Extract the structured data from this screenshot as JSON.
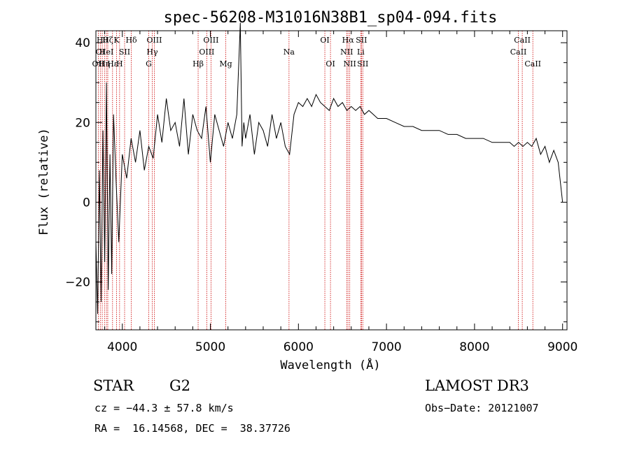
{
  "chart_data": {
    "type": "line",
    "title": "spec-56208-M31016N38B1_sp04-094.fits",
    "xlabel": "Wavelength (Å)",
    "ylabel": "Flux (relative)",
    "xlim": [
      3700,
      9050
    ],
    "ylim": [
      -32,
      43
    ],
    "xticks": [
      4000,
      5000,
      6000,
      7000,
      8000,
      9000
    ],
    "yticks": [
      -20,
      0,
      20,
      40
    ],
    "xtick_labels": [
      "4000",
      "5000",
      "6000",
      "7000",
      "8000",
      "9000"
    ],
    "ytick_labels": [
      "−20",
      "0",
      "20",
      "40"
    ],
    "series": [
      {
        "name": "flux",
        "color": "#000000",
        "x": [
          3700,
          3720,
          3740,
          3760,
          3780,
          3800,
          3820,
          3840,
          3860,
          3880,
          3900,
          3930,
          3960,
          4000,
          4050,
          4100,
          4150,
          4200,
          4250,
          4300,
          4350,
          4400,
          4450,
          4500,
          4550,
          4600,
          4650,
          4700,
          4750,
          4800,
          4850,
          4900,
          4950,
          5000,
          5050,
          5100,
          5150,
          5200,
          5250,
          5300,
          5340,
          5360,
          5380,
          5400,
          5450,
          5500,
          5550,
          5600,
          5650,
          5700,
          5750,
          5800,
          5850,
          5900,
          5950,
          6000,
          6050,
          6100,
          6150,
          6200,
          6250,
          6300,
          6350,
          6400,
          6450,
          6500,
          6550,
          6600,
          6650,
          6700,
          6750,
          6800,
          6850,
          6900,
          6950,
          7000,
          7100,
          7200,
          7300,
          7400,
          7500,
          7600,
          7700,
          7800,
          7900,
          8000,
          8100,
          8200,
          8300,
          8400,
          8450,
          8500,
          8550,
          8600,
          8650,
          8700,
          8750,
          8800,
          8850,
          8900,
          8950,
          9000
        ],
        "values": [
          -10,
          -28,
          8,
          -25,
          18,
          -15,
          30,
          -22,
          12,
          -18,
          22,
          5,
          -10,
          12,
          6,
          16,
          10,
          18,
          8,
          14,
          11,
          22,
          15,
          26,
          18,
          20,
          14,
          26,
          12,
          22,
          18,
          16,
          24,
          10,
          22,
          18,
          14,
          20,
          16,
          22,
          45,
          14,
          20,
          16,
          22,
          12,
          20,
          18,
          14,
          22,
          16,
          20,
          14,
          12,
          22,
          25,
          24,
          26,
          24,
          27,
          25,
          24,
          23,
          26,
          24,
          25,
          23,
          24,
          23,
          24,
          22,
          23,
          22,
          21,
          21,
          21,
          20,
          19,
          19,
          18,
          18,
          18,
          17,
          17,
          16,
          16,
          16,
          15,
          15,
          15,
          14,
          15,
          14,
          15,
          14,
          16,
          12,
          14,
          10,
          13,
          10,
          0
        ]
      }
    ],
    "lines": [
      {
        "wavelength": 3727,
        "label": "OII",
        "row": 3
      },
      {
        "wavelength": 3750,
        "label": "OI",
        "row": 2
      },
      {
        "wavelength": 3772,
        "label": "Hθ",
        "row": 1
      },
      {
        "wavelength": 3798,
        "label": "Hη",
        "row": 3
      },
      {
        "wavelength": 3820,
        "label": "HeI",
        "row": 2
      },
      {
        "wavelength": 3835,
        "label": "Hζ",
        "row": 1
      },
      {
        "wavelength": 3889,
        "label": "Hε",
        "row": 3
      },
      {
        "wavelength": 3934,
        "label": "K",
        "row": 1
      },
      {
        "wavelength": 3969,
        "label": "H",
        "row": 3
      },
      {
        "wavelength": 4026,
        "label": "SII",
        "row": 2
      },
      {
        "wavelength": 4102,
        "label": "Hδ",
        "row": 1
      },
      {
        "wavelength": 4300,
        "label": "G",
        "row": 3
      },
      {
        "wavelength": 4340,
        "label": "Hγ",
        "row": 2
      },
      {
        "wavelength": 4363,
        "label": "OIII",
        "row": 1
      },
      {
        "wavelength": 4861,
        "label": "Hβ",
        "row": 3
      },
      {
        "wavelength": 4959,
        "label": "OIII",
        "row": 2
      },
      {
        "wavelength": 5007,
        "label": "OIII",
        "row": 1
      },
      {
        "wavelength": 5175,
        "label": "Mg",
        "row": 3
      },
      {
        "wavelength": 5893,
        "label": "Na",
        "row": 2
      },
      {
        "wavelength": 6300,
        "label": "OI",
        "row": 1
      },
      {
        "wavelength": 6364,
        "label": "OI",
        "row": 3
      },
      {
        "wavelength": 6548,
        "label": "NII",
        "row": 2
      },
      {
        "wavelength": 6563,
        "label": "Hα",
        "row": 1
      },
      {
        "wavelength": 6583,
        "label": "NII",
        "row": 3
      },
      {
        "wavelength": 6708,
        "label": "Li",
        "row": 2
      },
      {
        "wavelength": 6716,
        "label": "SII",
        "row": 1
      },
      {
        "wavelength": 6731,
        "label": "SII",
        "row": 3
      },
      {
        "wavelength": 8498,
        "label": "CaII",
        "row": 2
      },
      {
        "wavelength": 8542,
        "label": "CaII",
        "row": 1
      },
      {
        "wavelength": 8662,
        "label": "CaII",
        "row": 3
      }
    ]
  },
  "info": {
    "object_class": "STAR",
    "subclass": "G2",
    "survey": "LAMOST DR3",
    "redshift": "cz = −44.3 ± 57.8 km/s",
    "obs_date": "Obs−Date: 20121007",
    "coords": "RA =  16.14568, DEC =  38.37726"
  },
  "colors": {
    "line_marker": "#cc0000",
    "spectrum": "#000000",
    "axis": "#000000"
  }
}
